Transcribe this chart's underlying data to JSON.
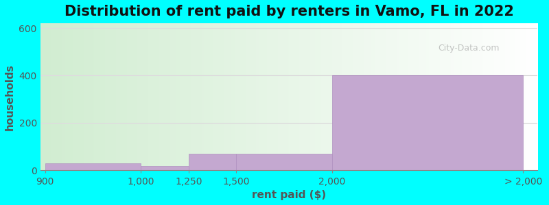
{
  "title": "Distribution of rent paid by renters in Vamo, FL in 2022",
  "xlabel": "rent paid ($)",
  "ylabel": "households",
  "background_color": "#00FFFF",
  "bar_color": "#c4a8d0",
  "bar_edge_color": "#b090c0",
  "x_tick_labels": [
    "900",
    "1,000",
    "1,250",
    "1,500",
    "2,000",
    "> 2,000"
  ],
  "xtick_pos": [
    0,
    1,
    1.5,
    2,
    3,
    5
  ],
  "bar_lefts": [
    0,
    1,
    1.5,
    2,
    3
  ],
  "bar_widths": [
    1,
    0.5,
    0.5,
    1,
    2
  ],
  "bar_heights": [
    30,
    20,
    70,
    70,
    400
  ],
  "xlim": [
    -0.05,
    5.15
  ],
  "ylim": [
    0,
    620
  ],
  "yticks": [
    0,
    200,
    400,
    600
  ],
  "title_fontsize": 15,
  "axis_label_fontsize": 11,
  "tick_fontsize": 10,
  "watermark_text": "City-Data.com",
  "grid_color": "#dddddd"
}
